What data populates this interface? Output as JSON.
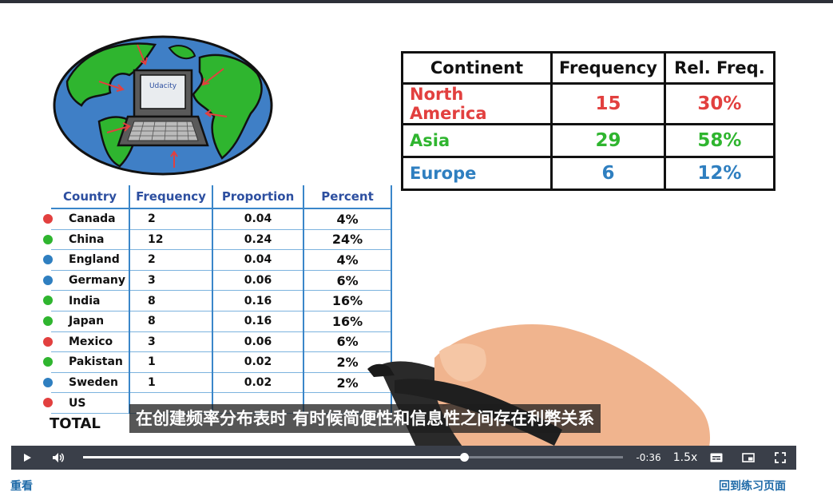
{
  "colors": {
    "red": "#e2403f",
    "green": "#2fb52f",
    "blue": "#2f7fc0",
    "header_blue": "#2d4fa0",
    "link": "#1e6aa8",
    "control_bar": "#3a3f49"
  },
  "laptop": {
    "screen_text": "Udacity"
  },
  "continent_table": {
    "headers": [
      "Continent",
      "Frequency",
      "Rel. Freq."
    ],
    "rows": [
      {
        "continent": "North America",
        "frequency": "15",
        "rel_freq": "30%",
        "color": "#e2403f"
      },
      {
        "continent": "Asia",
        "frequency": "29",
        "rel_freq": "58%",
        "color": "#2fb52f"
      },
      {
        "continent": "Europe",
        "frequency": "6",
        "rel_freq": "12%",
        "color": "#2f7fc0"
      }
    ]
  },
  "country_table": {
    "headers": [
      "Country",
      "Frequency",
      "Proportion",
      "Percent"
    ],
    "rows": [
      {
        "country": "Canada",
        "frequency": "2",
        "proportion": "0.04",
        "percent": "4%",
        "dot": "#e2403f"
      },
      {
        "country": "China",
        "frequency": "12",
        "proportion": "0.24",
        "percent": "24%",
        "dot": "#2fb52f"
      },
      {
        "country": "England",
        "frequency": "2",
        "proportion": "0.04",
        "percent": "4%",
        "dot": "#2f7fc0"
      },
      {
        "country": "Germany",
        "frequency": "3",
        "proportion": "0.06",
        "percent": "6%",
        "dot": "#2f7fc0"
      },
      {
        "country": "India",
        "frequency": "8",
        "proportion": "0.16",
        "percent": "16%",
        "dot": "#2fb52f"
      },
      {
        "country": "Japan",
        "frequency": "8",
        "proportion": "0.16",
        "percent": "16%",
        "dot": "#2fb52f"
      },
      {
        "country": "Mexico",
        "frequency": "3",
        "proportion": "0.06",
        "percent": "6%",
        "dot": "#e2403f"
      },
      {
        "country": "Pakistan",
        "frequency": "1",
        "proportion": "0.02",
        "percent": "2%",
        "dot": "#2fb52f"
      },
      {
        "country": "Sweden",
        "frequency": "1",
        "proportion": "0.02",
        "percent": "2%",
        "dot": "#2f7fc0"
      },
      {
        "country": "US",
        "frequency": "",
        "proportion": "",
        "percent": "",
        "dot": "#e2403f"
      }
    ],
    "total_label": "TOTAL"
  },
  "subtitle": "在创建频率分布表时 有时候简便性和信息性之间存在利弊关系",
  "player": {
    "play_icon": "play-icon",
    "volume_icon": "volume-icon",
    "progress_fraction": 0.705,
    "time_remaining": "-0:36",
    "speed": "1.5x",
    "captions_icon": "captions-icon",
    "pip_icon": "picture-in-picture-icon",
    "fullscreen_icon": "fullscreen-icon"
  },
  "links": {
    "replay": "重看",
    "back_to_exercise": "回到练习页面"
  }
}
